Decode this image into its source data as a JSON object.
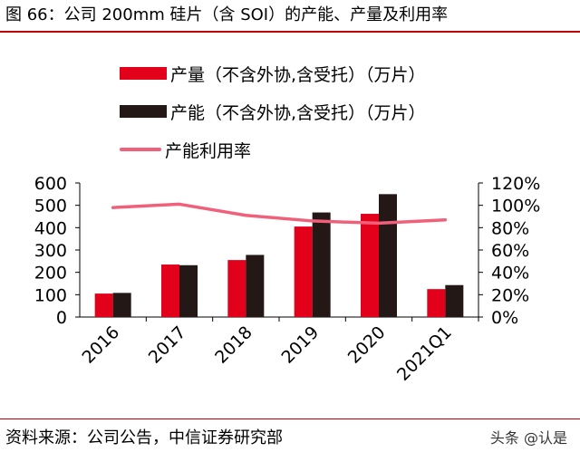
{
  "title": "图 66：公司 200mm 硅片（含 SOI）的产能、产量及利用率",
  "source": "资料来源：公司公告，中信证券研究部",
  "watermark": "头条 @认是",
  "colors": {
    "accent": "#c00000",
    "production": "#e3001b",
    "capacity": "#231815",
    "utilization": "#f0607a"
  },
  "chart_data": {
    "type": "bar",
    "categories": [
      "2016",
      "2017",
      "2018",
      "2019",
      "2020",
      "2021Q1"
    ],
    "series": [
      {
        "name": "产量（不含外协,含受托）（万片）",
        "type": "bar",
        "axis": "left",
        "color": "#e3001b",
        "values": [
          105,
          235,
          255,
          405,
          462,
          125
        ]
      },
      {
        "name": "产能（不含外协,含受托）（万片）",
        "type": "bar",
        "axis": "left",
        "color": "#231815",
        "values": [
          108,
          232,
          278,
          468,
          550,
          143
        ]
      },
      {
        "name": "产能利用率",
        "type": "line",
        "axis": "right",
        "color": "#f0607a",
        "values": [
          98,
          101,
          91,
          86,
          84,
          87
        ]
      }
    ],
    "left_axis": {
      "ylim": [
        0,
        600
      ],
      "ticks": [
        "0",
        "100",
        "200",
        "300",
        "400",
        "500",
        "600"
      ]
    },
    "right_axis": {
      "ylim": [
        0,
        120
      ],
      "ticks": [
        "0%",
        "20%",
        "40%",
        "60%",
        "80%",
        "100%",
        "120%"
      ]
    },
    "legend_position": "top-left"
  }
}
